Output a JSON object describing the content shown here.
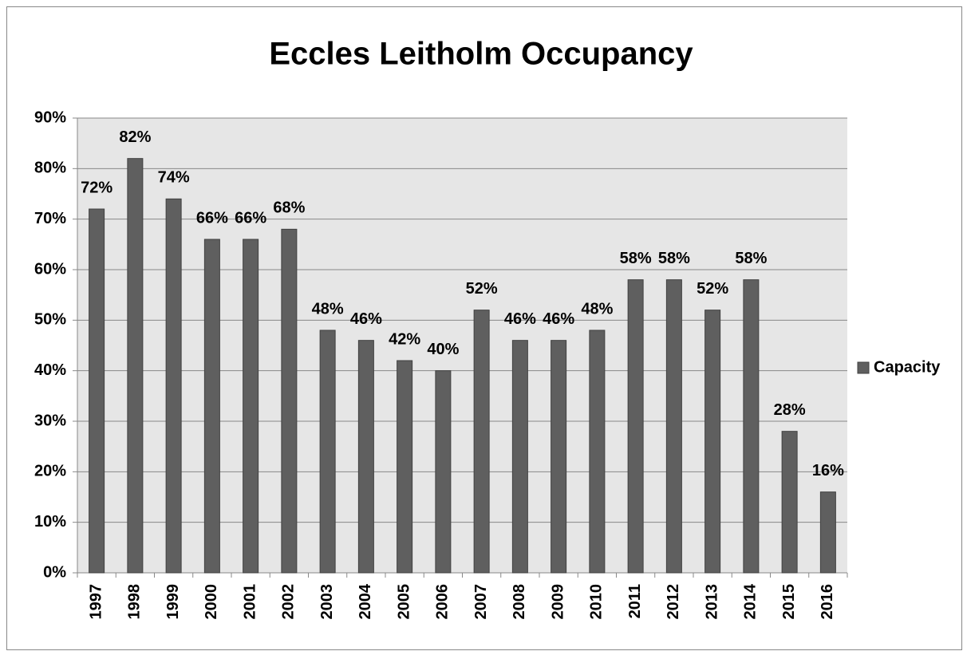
{
  "chart_data": {
    "type": "bar",
    "title": "Eccles Leitholm Occupancy",
    "categories": [
      "1997",
      "1998",
      "1999",
      "2000",
      "2001",
      "2002",
      "2003",
      "2004",
      "2005",
      "2006",
      "2007",
      "2008",
      "2009",
      "2010",
      "2011",
      "2012",
      "2013",
      "2014",
      "2015",
      "2016"
    ],
    "series": [
      {
        "name": "Capacity",
        "color": "#5f5f5f",
        "values": [
          72,
          82,
          74,
          66,
          66,
          68,
          48,
          46,
          42,
          40,
          52,
          46,
          46,
          48,
          58,
          58,
          52,
          58,
          28,
          16
        ],
        "value_labels": [
          "72%",
          "82%",
          "74%",
          "66%",
          "66%",
          "68%",
          "48%",
          "46%",
          "42%",
          "40%",
          "52%",
          "46%",
          "46%",
          "48%",
          "58%",
          "58%",
          "52%",
          "58%",
          "28%",
          "16%"
        ]
      }
    ],
    "ylim": [
      0,
      90
    ],
    "yticks": [
      {
        "value": 0,
        "label": "0%"
      },
      {
        "value": 10,
        "label": "10%"
      },
      {
        "value": 20,
        "label": "20%"
      },
      {
        "value": 30,
        "label": "30%"
      },
      {
        "value": 40,
        "label": "40%"
      },
      {
        "value": 50,
        "label": "50%"
      },
      {
        "value": 60,
        "label": "60%"
      },
      {
        "value": 70,
        "label": "70%"
      },
      {
        "value": 80,
        "label": "80%"
      },
      {
        "value": 90,
        "label": "90%"
      }
    ],
    "grid": true,
    "legend": "right"
  }
}
